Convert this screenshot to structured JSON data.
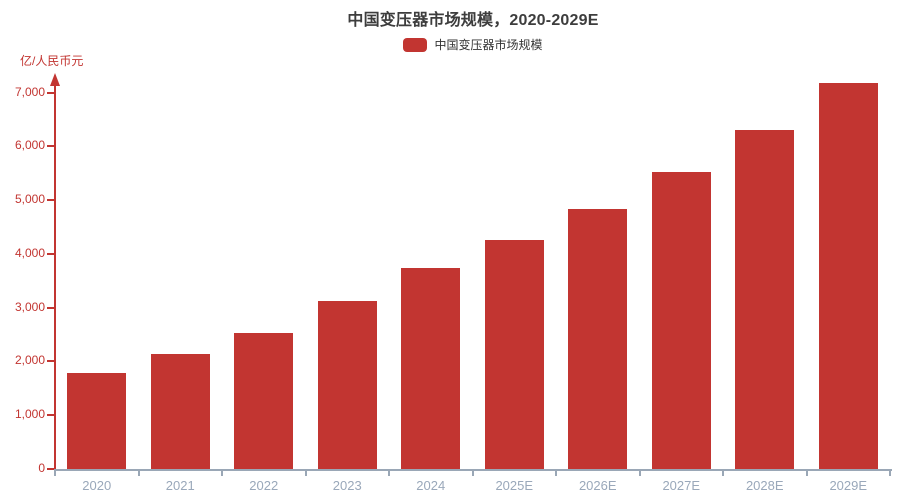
{
  "title": "中国变压器市场规模，2020-2029E",
  "legend": {
    "label": "中国变压器市场规模"
  },
  "y_axis": {
    "unit_label": "亿/人民币元",
    "tick_values": [
      0,
      1000,
      2000,
      3000,
      4000,
      5000,
      6000,
      7000
    ],
    "tick_labels": [
      "0",
      "1,000",
      "2,000",
      "3,000",
      "4,000",
      "5,000",
      "6,000",
      "7,000"
    ]
  },
  "colors": {
    "bar_red": "#c23531",
    "axis_gray": "#9aa7b6",
    "x_label_gray": "#9aa8ba",
    "title_color": "#3d3d3d"
  },
  "chart_data": {
    "type": "bar",
    "title": "中国变压器市场规模，2020-2029E",
    "categories": [
      "2020",
      "2021",
      "2022",
      "2023",
      "2024",
      "2025E",
      "2026E",
      "2027E",
      "2028E",
      "2029E"
    ],
    "values": [
      1790,
      2130,
      2520,
      3130,
      3730,
      4250,
      4840,
      5520,
      6300,
      7180
    ],
    "series_name": "中国变压器市场规模",
    "xlabel": "",
    "ylabel": "亿/人民币元",
    "ylim": [
      0,
      7000
    ],
    "y_tick_step": 1000,
    "grid": false,
    "legend_position": "top-center",
    "bar_color": "#c23531"
  }
}
